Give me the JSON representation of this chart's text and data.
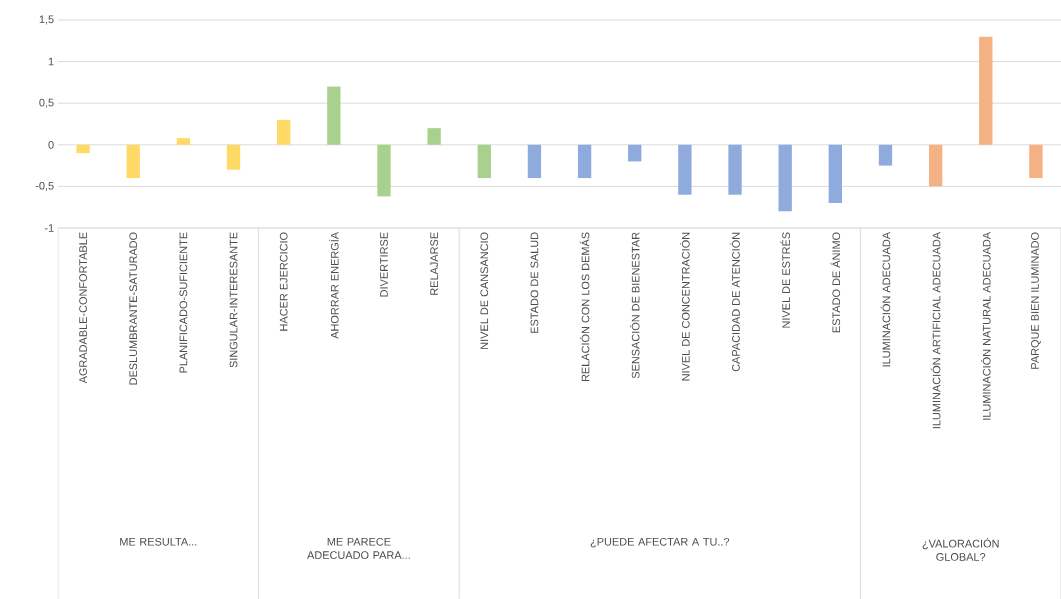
{
  "chart_data": {
    "type": "bar",
    "categories": [
      "AGRADABLE-CONFORTABLE",
      "DESLUMBRANTE-SATURADO",
      "PLANIFICADO-SUFICIENTE",
      "SINGULAR-INTERESANTE",
      "HACER EJERCICIO",
      "AHORRAR ENERGÍA",
      "DIVERTIRSE",
      "RELAJARSE",
      "NIVEL DE CANSANCIO",
      "ESTADO DE SALUD",
      "RELACIÓN CON LOS DEMÁS",
      "SENSACIÓN DE BIENESTAR",
      "NIVEL DE CONCENTRACIÓN",
      "CAPACIDAD DE ATENCIÓN",
      "NIVEL DE ESTRÉS",
      "ESTADO DE ÁNIMO",
      "ILUMINACIÓN ADECUADA",
      "ILUMINACIÓN ARTIFICIAL ADECUADA",
      "ILUMINACIÓN NATURAL ADECUADA",
      "PARQUE BIEN ILUMINADO"
    ],
    "values": [
      -0.1,
      -0.4,
      0.08,
      -0.3,
      0.3,
      0.7,
      -0.62,
      0.2,
      -0.4,
      -0.4,
      -0.4,
      -0.2,
      -0.6,
      -0.6,
      -0.8,
      -0.7,
      -0.25,
      -0.5,
      1.3,
      -0.4
    ],
    "colors": [
      "#ffd966",
      "#ffd966",
      "#ffd966",
      "#ffd966",
      "#ffd966",
      "#a9d18e",
      "#a9d18e",
      "#a9d18e",
      "#a9d18e",
      "#8faadc",
      "#8faadc",
      "#8faadc",
      "#8faadc",
      "#8faadc",
      "#8faadc",
      "#8faadc",
      "#8faadc",
      "#f4b183",
      "#f4b183",
      "#f4b183"
    ],
    "ylim": [
      -1,
      1.5
    ],
    "yticks": [
      -1,
      {
        "value": -0.5,
        "label": "-0,5"
      },
      0,
      {
        "value": 0.5,
        "label": "0,5"
      },
      1,
      {
        "value": 1.5,
        "label": "1,5"
      }
    ],
    "grid": "y",
    "annotations": [
      "ME RESULTA...",
      "ME PARECE ADECUADO PARA...",
      "¿PUEDE AFECTAR A TU..?",
      "¿VALORACIÓN GLOBAL?"
    ]
  }
}
